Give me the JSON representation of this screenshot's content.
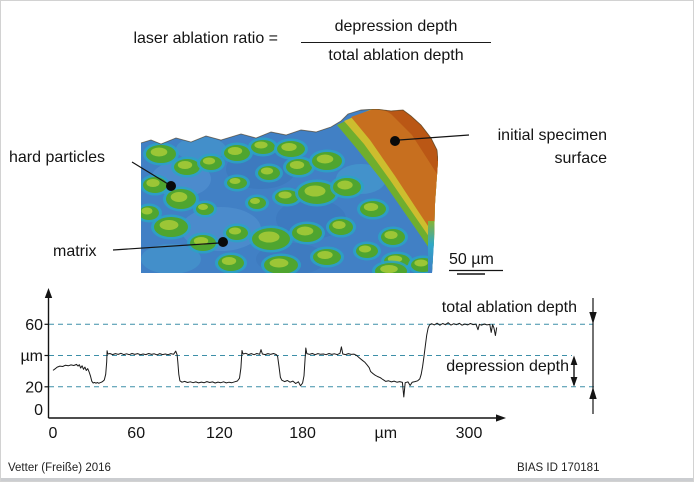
{
  "formula": {
    "lhs": "laser ablation ratio =",
    "numerator": "depression depth",
    "denominator": "total ablation depth"
  },
  "micrograph": {
    "label_hard_particles": "hard particles",
    "label_matrix": "matrix",
    "label_initial_surface_line1": "initial specimen",
    "label_initial_surface_line2": "surface",
    "scale_bar_label": "50 µm",
    "colors": {
      "matrix_blue": "#4180c5",
      "particle_green": "#4fa52f",
      "particle_core_yellow": "#9cc636",
      "particle_rim_cyan": "#2aa3c4",
      "surface_orange": "#c76f1f",
      "surface_red": "#b85414"
    }
  },
  "chart_data": {
    "type": "line",
    "title": "",
    "xlabel": "µm",
    "ylabel": "µm",
    "x_ticks": [
      {
        "value": 0,
        "label": "0"
      },
      {
        "value": 60,
        "label": "60"
      },
      {
        "value": 120,
        "label": "120"
      },
      {
        "value": 180,
        "label": "180"
      },
      {
        "value": 240,
        "label": "µm"
      },
      {
        "value": 300,
        "label": "300"
      }
    ],
    "y_ticks": [
      {
        "value": 60,
        "label": "60"
      },
      {
        "value": 40,
        "label": "µm"
      },
      {
        "value": 20,
        "label": "20"
      },
      {
        "value": 0,
        "label": "0"
      }
    ],
    "xlim": [
      0,
      327
    ],
    "ylim": [
      0,
      80
    ],
    "reference_lines": [
      60,
      40,
      20
    ],
    "grid": false,
    "legend": "none",
    "line_color": "#1a1a1a",
    "dash_color": "#3d8fa8",
    "annotations": {
      "total_label": "total ablation depth",
      "depression_label": "depression depth",
      "total_span_um": [
        20,
        60
      ],
      "depression_span_um": [
        20,
        40
      ]
    },
    "profile": [
      [
        0,
        30.5
      ],
      [
        2,
        31.8
      ],
      [
        3,
        32.6
      ],
      [
        5,
        33.2
      ],
      [
        7,
        33.0
      ],
      [
        9,
        33.8
      ],
      [
        11,
        33.4
      ],
      [
        13,
        34.0
      ],
      [
        15,
        33.6
      ],
      [
        17,
        34.3
      ],
      [
        18,
        33.2
      ],
      [
        19,
        34.1
      ],
      [
        20,
        32.0
      ],
      [
        21,
        33.4
      ],
      [
        22,
        31.2
      ],
      [
        23,
        32.6
      ],
      [
        24,
        30.4
      ],
      [
        25,
        31.6
      ],
      [
        26,
        29.5
      ],
      [
        27,
        27.0
      ],
      [
        28,
        23.5
      ],
      [
        29,
        22.4
      ],
      [
        30,
        22.8
      ],
      [
        31,
        22.3
      ],
      [
        32,
        22.7
      ],
      [
        33,
        22.2
      ],
      [
        34,
        22.6
      ],
      [
        35,
        22.9
      ],
      [
        36,
        23.5
      ],
      [
        37,
        24.3
      ],
      [
        38,
        28.0
      ],
      [
        38.7,
        36.0
      ],
      [
        39,
        43.0
      ],
      [
        39.5,
        41.0
      ],
      [
        41,
        41.3
      ],
      [
        43,
        40.6
      ],
      [
        45,
        41.2
      ],
      [
        47,
        40.7
      ],
      [
        49,
        41.4
      ],
      [
        51,
        40.6
      ],
      [
        53,
        41.1
      ],
      [
        55,
        40.5
      ],
      [
        57,
        41.3
      ],
      [
        59,
        40.7
      ],
      [
        61,
        41.2
      ],
      [
        63,
        40.5
      ],
      [
        65,
        41.0
      ],
      [
        67,
        40.6
      ],
      [
        69,
        41.3
      ],
      [
        71,
        40.7
      ],
      [
        73,
        41.1
      ],
      [
        75,
        40.4
      ],
      [
        77,
        41.2
      ],
      [
        79,
        40.6
      ],
      [
        81,
        41.0
      ],
      [
        83,
        40.5
      ],
      [
        85,
        41.2
      ],
      [
        87,
        40.8
      ],
      [
        88.5,
        42.8
      ],
      [
        89.5,
        40.5
      ],
      [
        90,
        36.0
      ],
      [
        90.7,
        28.0
      ],
      [
        91.5,
        23.8
      ],
      [
        93,
        22.9
      ],
      [
        95,
        23.4
      ],
      [
        97,
        22.7
      ],
      [
        99,
        23.2
      ],
      [
        101,
        22.6
      ],
      [
        103,
        23.1
      ],
      [
        105,
        22.5
      ],
      [
        107,
        23.0
      ],
      [
        109,
        22.6
      ],
      [
        111,
        23.3
      ],
      [
        113,
        22.7
      ],
      [
        115,
        23.1
      ],
      [
        117,
        22.4
      ],
      [
        119,
        23.0
      ],
      [
        121,
        22.6
      ],
      [
        123,
        23.2
      ],
      [
        125,
        22.5
      ],
      [
        127,
        22.9
      ],
      [
        129,
        22.6
      ],
      [
        131,
        23.2
      ],
      [
        133,
        23.7
      ],
      [
        134.5,
        25.5
      ],
      [
        135.5,
        32.0
      ],
      [
        136.3,
        43.2
      ],
      [
        137,
        41.0
      ],
      [
        139,
        41.4
      ],
      [
        141,
        40.6
      ],
      [
        143,
        41.2
      ],
      [
        145,
        40.5
      ],
      [
        147,
        41.3
      ],
      [
        149,
        40.8
      ],
      [
        150,
        43.8
      ],
      [
        151,
        41.0
      ],
      [
        153,
        40.6
      ],
      [
        155,
        41.2
      ],
      [
        157,
        40.7
      ],
      [
        159,
        41.3
      ],
      [
        161,
        40.6
      ],
      [
        162,
        39.5
      ],
      [
        163,
        33.0
      ],
      [
        164,
        26.0
      ],
      [
        165,
        24.2
      ],
      [
        167,
        23.3
      ],
      [
        169,
        24.0
      ],
      [
        171,
        22.9
      ],
      [
        173,
        23.6
      ],
      [
        175,
        22.1
      ],
      [
        177,
        23.2
      ],
      [
        178.5,
        20.6
      ],
      [
        180,
        22.4
      ],
      [
        181,
        27.0
      ],
      [
        181.8,
        38.0
      ],
      [
        182.3,
        44.8
      ],
      [
        183,
        41.2
      ],
      [
        185,
        40.7
      ],
      [
        187,
        41.3
      ],
      [
        189,
        40.5
      ],
      [
        191,
        41.2
      ],
      [
        193,
        40.8
      ],
      [
        195,
        41.0
      ],
      [
        197,
        40.5
      ],
      [
        199,
        41.3
      ],
      [
        201,
        40.7
      ],
      [
        203,
        41.1
      ],
      [
        205,
        40.6
      ],
      [
        207,
        41.4
      ],
      [
        208,
        45.5
      ],
      [
        209,
        41.0
      ],
      [
        211,
        40.6
      ],
      [
        213,
        41.2
      ],
      [
        215,
        40.7
      ],
      [
        217,
        40.9
      ],
      [
        219,
        40.0
      ],
      [
        221,
        38.4
      ],
      [
        223,
        37.0
      ],
      [
        225,
        35.6
      ],
      [
        226.5,
        34.0
      ],
      [
        228,
        32.2
      ],
      [
        229,
        29.8
      ],
      [
        230.5,
        28.6
      ],
      [
        232,
        27.6
      ],
      [
        234,
        26.6
      ],
      [
        236,
        25.8
      ],
      [
        238,
        24.6
      ],
      [
        240,
        23.4
      ],
      [
        242,
        23.8
      ],
      [
        244,
        23.1
      ],
      [
        246,
        23.6
      ],
      [
        248,
        22.9
      ],
      [
        250,
        23.3
      ],
      [
        252,
        22.8
      ],
      [
        253,
        13.5
      ],
      [
        254,
        22.6
      ],
      [
        256,
        23.1
      ],
      [
        257.5,
        20.8
      ],
      [
        259,
        22.9
      ],
      [
        261,
        23.3
      ],
      [
        263,
        23.8
      ],
      [
        264.5,
        25.0
      ],
      [
        265.5,
        28.0
      ],
      [
        266.5,
        33.0
      ],
      [
        267.5,
        39.0
      ],
      [
        268.5,
        46.0
      ],
      [
        269.5,
        53.0
      ],
      [
        270.5,
        57.5
      ],
      [
        271.5,
        59.6
      ],
      [
        273,
        60.4
      ],
      [
        275,
        59.6
      ],
      [
        277,
        60.7
      ],
      [
        279,
        59.4
      ],
      [
        281,
        60.5
      ],
      [
        283,
        59.7
      ],
      [
        285,
        61.0
      ],
      [
        287,
        59.5
      ],
      [
        289,
        60.4
      ],
      [
        291,
        59.7
      ],
      [
        293,
        60.6
      ],
      [
        295,
        59.4
      ],
      [
        297,
        60.2
      ],
      [
        299,
        59.6
      ],
      [
        301,
        60.5
      ],
      [
        303,
        59.8
      ],
      [
        305,
        60.1
      ],
      [
        306.5,
        56.5
      ],
      [
        307.5,
        60.0
      ],
      [
        309,
        59.4
      ],
      [
        311,
        60.2
      ],
      [
        313,
        59.6
      ],
      [
        315,
        59.9
      ],
      [
        316,
        54.8
      ],
      [
        317,
        59.8
      ],
      [
        318,
        57.5
      ],
      [
        319,
        52.8
      ],
      [
        320,
        58.0
      ]
    ]
  },
  "footer": {
    "left": "Vetter (Freiße) 2016",
    "right": "BIAS ID 170181"
  }
}
